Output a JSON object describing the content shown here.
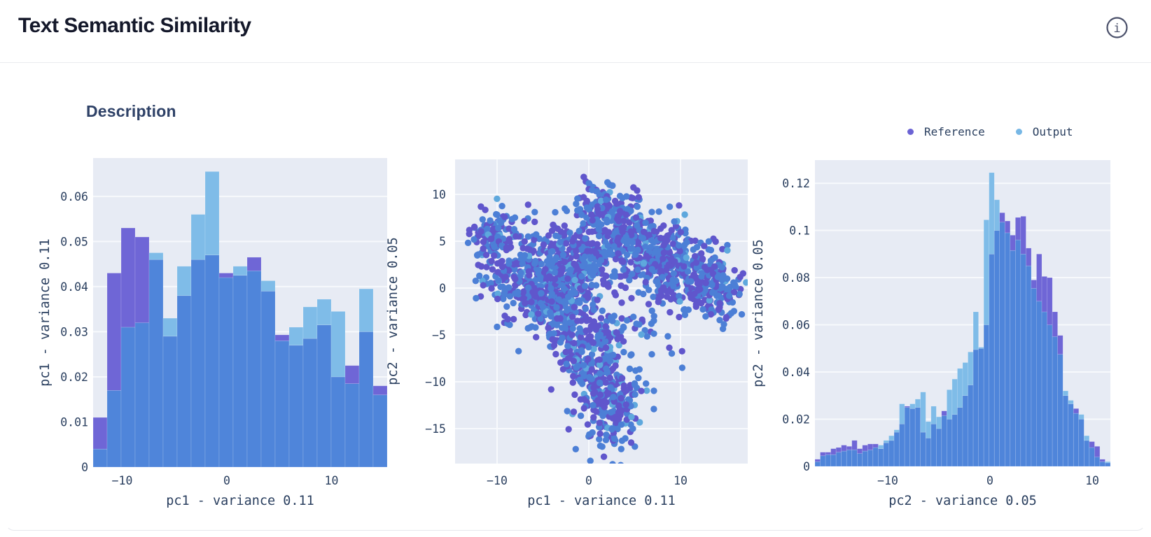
{
  "header": {
    "title": "Text Semantic Similarity",
    "info_glyph": "i"
  },
  "section": {
    "heading": "Description"
  },
  "legend": {
    "items": [
      {
        "label": "Reference",
        "color": "#6b63d4"
      },
      {
        "label": "Output",
        "color": "#77b7e5"
      }
    ]
  },
  "colors": {
    "reference": "#6f66d6",
    "output": "#7fbce8",
    "overlap": "#4f85da",
    "scatter_reference": "#6056cc",
    "scatter_overlap": "#4c7fd6",
    "scatter_output": "#5ea8dd",
    "plot_bg": "#e7ebf4",
    "grid": "#f7f9fc",
    "text": "#2a3f5f"
  },
  "chart_data": [
    {
      "id": "pc1-histogram",
      "type": "bar",
      "subtype": "overlaid-histogram",
      "title": "",
      "xlabel": "pc1 - variance 0.11",
      "ylabel": "pc1 - variance 0.11",
      "x_start": -12.78,
      "bin_width": 1.337,
      "xlim": [
        -12.78,
        15.3
      ],
      "ylim": [
        0,
        0.0685
      ],
      "grid": true,
      "xticks": [
        {
          "value": -10,
          "label": "−10"
        },
        {
          "value": 0,
          "label": "0"
        },
        {
          "value": 10,
          "label": "10"
        }
      ],
      "yticks": [
        {
          "value": 0,
          "label": "0"
        },
        {
          "value": 0.01,
          "label": "0.01"
        },
        {
          "value": 0.02,
          "label": "0.02"
        },
        {
          "value": 0.03,
          "label": "0.03"
        },
        {
          "value": 0.04,
          "label": "0.04"
        },
        {
          "value": 0.05,
          "label": "0.05"
        },
        {
          "value": 0.06,
          "label": "0.06"
        }
      ],
      "series": [
        {
          "name": "Reference",
          "values": [
            0.011,
            0.043,
            0.053,
            0.051,
            0.046,
            0.029,
            0.038,
            0.046,
            0.047,
            0.043,
            0.0425,
            0.0465,
            0.039,
            0.0293,
            0.027,
            0.0285,
            0.0315,
            0.02,
            0.0225,
            0.03,
            0.018
          ]
        },
        {
          "name": "Output",
          "values": [
            0.004,
            0.017,
            0.031,
            0.032,
            0.0475,
            0.033,
            0.0445,
            0.056,
            0.0655,
            0.042,
            0.0445,
            0.0435,
            0.0413,
            0.028,
            0.031,
            0.0355,
            0.0372,
            0.0345,
            0.0185,
            0.0395,
            0.016
          ]
        }
      ]
    },
    {
      "id": "pc1-pc2-scatter",
      "type": "scatter",
      "title": "",
      "xlabel": "pc1 - variance 0.11",
      "ylabel": "pc2 - variance 0.05",
      "xlim": [
        -14.6,
        17.3
      ],
      "ylim": [
        -18.7,
        13.7
      ],
      "grid": true,
      "xticks": [
        {
          "value": -10,
          "label": "−10"
        },
        {
          "value": 0,
          "label": "0"
        },
        {
          "value": 10,
          "label": "10"
        }
      ],
      "yticks": [
        {
          "value": 10,
          "label": "10"
        },
        {
          "value": 5,
          "label": "5"
        },
        {
          "value": 0,
          "label": "0"
        },
        {
          "value": -5,
          "label": "−5"
        },
        {
          "value": -10,
          "label": "−10"
        },
        {
          "value": -15,
          "label": "−15"
        }
      ],
      "series": [
        {
          "name": "Reference"
        },
        {
          "name": "Output"
        }
      ],
      "point_cloud": {
        "seed": 7,
        "point_radius": 4.7,
        "color_mix": [
          {
            "color_key": "scatter_reference",
            "weight": 0.47
          },
          {
            "color_key": "scatter_overlap",
            "weight": 0.465
          },
          {
            "color_key": "scatter_output",
            "weight": 0.065
          }
        ],
        "clusters": [
          [
            -10.2,
            5.6,
            1.5,
            1.3,
            110
          ],
          [
            -6.0,
            1.5,
            2.8,
            2.3,
            345
          ],
          [
            -3.2,
            -1.5,
            2.2,
            1.9,
            240
          ],
          [
            -0.6,
            3.2,
            1.9,
            2.1,
            165
          ],
          [
            1.8,
            8.6,
            1.7,
            1.4,
            145
          ],
          [
            5.6,
            4.4,
            2.5,
            1.9,
            245
          ],
          [
            9.0,
            2.0,
            2.4,
            1.9,
            215
          ],
          [
            13.6,
            0.2,
            1.6,
            1.7,
            160
          ],
          [
            -0.6,
            -6.0,
            1.9,
            1.7,
            145
          ],
          [
            0.8,
            -9.8,
            1.6,
            1.8,
            120
          ],
          [
            2.3,
            -13.6,
            1.5,
            1.9,
            115
          ],
          [
            5.0,
            -4.0,
            2.2,
            1.5,
            36
          ],
          [
            4.2,
            -10.5,
            1.4,
            1.6,
            43
          ],
          [
            9.9,
            -7.0,
            0.6,
            0.5,
            4
          ]
        ]
      }
    },
    {
      "id": "pc2-histogram",
      "type": "bar",
      "subtype": "overlaid-histogram",
      "title": "",
      "xlabel": "pc2 - variance 0.05",
      "ylabel": "pc2 - variance 0.05",
      "x_start": -17.1,
      "bin_width": 0.515,
      "xlim": [
        -17.1,
        11.74
      ],
      "ylim": [
        0,
        0.1298
      ],
      "grid": true,
      "xticks": [
        {
          "value": -10,
          "label": "−10"
        },
        {
          "value": 0,
          "label": "0"
        },
        {
          "value": 10,
          "label": "10"
        }
      ],
      "yticks": [
        {
          "value": 0,
          "label": "0"
        },
        {
          "value": 0.02,
          "label": "0.02"
        },
        {
          "value": 0.04,
          "label": "0.04"
        },
        {
          "value": 0.06,
          "label": "0.06"
        },
        {
          "value": 0.08,
          "label": "0.08"
        },
        {
          "value": 0.1,
          "label": "0.1"
        },
        {
          "value": 0.12,
          "label": "0.12"
        }
      ],
      "series": [
        {
          "name": "Reference",
          "values": [
            0.003,
            0.006,
            0.006,
            0.0075,
            0.008,
            0.009,
            0.0085,
            0.011,
            0.0075,
            0.009,
            0.0095,
            0.0095,
            0.0075,
            0.01,
            0.011,
            0.0145,
            0.018,
            0.0255,
            0.0245,
            0.025,
            0.0145,
            0.012,
            0.018,
            0.016,
            0.0235,
            0.02,
            0.022,
            0.025,
            0.03,
            0.0345,
            0.0495,
            0.05,
            0.06,
            0.09,
            0.1,
            0.1075,
            0.104,
            0.098,
            0.1055,
            0.106,
            0.0925,
            0.079,
            0.09,
            0.0805,
            0.08,
            0.0655,
            0.0555,
            0.03,
            0.0265,
            0.0245,
            0.02,
            0.011,
            0.0105,
            0.0085,
            0.003,
            0.0015
          ]
        },
        {
          "name": "Output",
          "values": [
            0.002,
            0.0045,
            0.005,
            0.005,
            0.006,
            0.0065,
            0.007,
            0.007,
            0.0055,
            0.0065,
            0.007,
            0.008,
            0.009,
            0.011,
            0.013,
            0.0155,
            0.0265,
            0.025,
            0.0265,
            0.0285,
            0.0315,
            0.019,
            0.0255,
            0.021,
            0.0215,
            0.0325,
            0.037,
            0.0415,
            0.044,
            0.0485,
            0.0655,
            0.0505,
            0.1045,
            0.1245,
            0.113,
            0.1035,
            0.099,
            0.0915,
            0.096,
            0.09,
            0.085,
            0.0755,
            0.07,
            0.0655,
            0.06,
            0.055,
            0.0475,
            0.032,
            0.028,
            0.0225,
            0.022,
            0.013,
            0.008,
            0.004,
            0.002,
            0.002
          ]
        }
      ]
    }
  ]
}
